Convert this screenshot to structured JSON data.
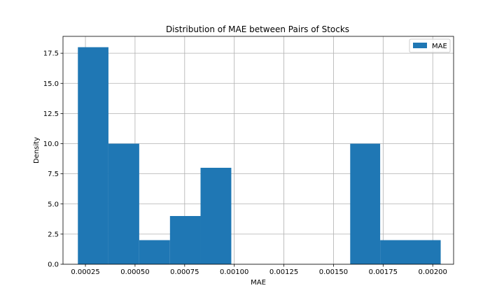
{
  "chart_data": {
    "type": "bar",
    "title": "Distribution of MAE between Pairs of Stocks",
    "xlabel": "MAE",
    "ylabel": "Density",
    "xlim": [
      0.000137,
      0.002105
    ],
    "ylim": [
      0,
      18.9
    ],
    "grid": true,
    "legend": {
      "placement": "top-right",
      "entries": [
        "MAE"
      ]
    },
    "bar_color": "#1f77b4",
    "x_ticks": [
      0.00025,
      0.0005,
      0.00075,
      0.001,
      0.00125,
      0.0015,
      0.00175,
      0.002
    ],
    "x_tick_labels": [
      "0.00025",
      "0.00050",
      "0.00075",
      "0.00100",
      "0.00125",
      "0.00150",
      "0.00175",
      "0.00200"
    ],
    "y_ticks": [
      0,
      2.5,
      5,
      7.5,
      10,
      12.5,
      15,
      17.5
    ],
    "y_tick_labels": [
      "0.0",
      "2.5",
      "5.0",
      "7.5",
      "10.0",
      "12.5",
      "15.0",
      "17.5"
    ],
    "series": [
      {
        "name": "MAE",
        "bins": [
          {
            "x0": 0.000212,
            "x1": 0.000366,
            "value": 18
          },
          {
            "x0": 0.000366,
            "x1": 0.000521,
            "value": 10
          },
          {
            "x0": 0.000521,
            "x1": 0.000676,
            "value": 2
          },
          {
            "x0": 0.000676,
            "x1": 0.00083,
            "value": 4
          },
          {
            "x0": 0.00083,
            "x1": 0.000985,
            "value": 8
          },
          {
            "x0": 0.000985,
            "x1": 0.001139,
            "value": 0
          },
          {
            "x0": 0.001139,
            "x1": 0.001294,
            "value": 0
          },
          {
            "x0": 0.001294,
            "x1": 0.001448,
            "value": 0
          },
          {
            "x0": 0.001448,
            "x1": 0.001584,
            "value": 0
          },
          {
            "x0": 0.001584,
            "x1": 0.001735,
            "value": 10
          },
          {
            "x0": 0.001735,
            "x1": 0.00204,
            "value": 2
          }
        ]
      }
    ]
  }
}
